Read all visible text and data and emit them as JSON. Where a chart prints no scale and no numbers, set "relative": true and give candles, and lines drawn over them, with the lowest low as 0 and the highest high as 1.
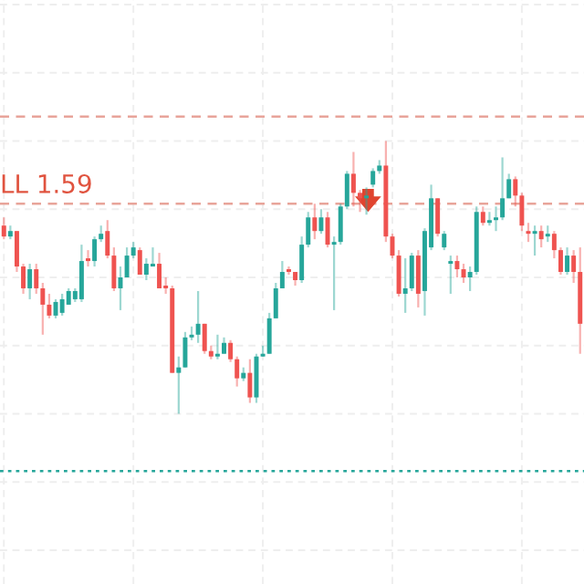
{
  "chart_data": {
    "type": "candlestick",
    "relative": true,
    "grid": true,
    "tick_labels": false,
    "categories": [
      null,
      null,
      null,
      null,
      null,
      null,
      null,
      null,
      null,
      null,
      null,
      null,
      null,
      null,
      null,
      null,
      null,
      null,
      null,
      null,
      null,
      null,
      null,
      null,
      null,
      null,
      null,
      null,
      null,
      null,
      null,
      null,
      null,
      null,
      null,
      null,
      null,
      null,
      null,
      null,
      null,
      null,
      null,
      null,
      null,
      null,
      null,
      null,
      null,
      null,
      null,
      null,
      null,
      null,
      null,
      null,
      null,
      null,
      null,
      null,
      null,
      null,
      null,
      null,
      null,
      null,
      null,
      null,
      null,
      null,
      null,
      null,
      null,
      null,
      null,
      null,
      null,
      null,
      null,
      null,
      null,
      null,
      null,
      null,
      null,
      null,
      null,
      null,
      null,
      null
    ],
    "ohlc": [
      [
        0.69,
        0.72,
        0.64,
        0.65
      ],
      [
        0.65,
        0.69,
        0.64,
        0.67
      ],
      [
        0.67,
        0.67,
        0.52,
        0.54
      ],
      [
        0.54,
        0.55,
        0.44,
        0.46
      ],
      [
        0.46,
        0.55,
        0.42,
        0.53
      ],
      [
        0.53,
        0.55,
        0.44,
        0.46
      ],
      [
        0.46,
        0.48,
        0.29,
        0.4
      ],
      [
        0.4,
        0.44,
        0.35,
        0.36
      ],
      [
        0.36,
        0.42,
        0.35,
        0.41
      ],
      [
        0.37,
        0.44,
        0.36,
        0.42
      ],
      [
        0.4,
        0.46,
        0.4,
        0.45
      ],
      [
        0.42,
        0.46,
        0.41,
        0.45
      ],
      [
        0.42,
        0.62,
        0.41,
        0.56
      ],
      [
        0.57,
        0.6,
        0.54,
        0.56
      ],
      [
        0.56,
        0.65,
        0.54,
        0.64
      ],
      [
        0.64,
        0.69,
        0.63,
        0.66
      ],
      [
        0.67,
        0.71,
        0.57,
        0.58
      ],
      [
        0.58,
        0.61,
        0.45,
        0.46
      ],
      [
        0.46,
        0.54,
        0.38,
        0.5
      ],
      [
        0.5,
        0.61,
        0.5,
        0.58
      ],
      [
        0.58,
        0.63,
        0.57,
        0.61
      ],
      [
        0.6,
        0.61,
        0.51,
        0.51
      ],
      [
        0.51,
        0.57,
        0.49,
        0.55
      ],
      [
        0.54,
        0.61,
        0.54,
        0.55
      ],
      [
        0.55,
        0.59,
        0.46,
        0.46
      ],
      [
        0.47,
        0.5,
        0.44,
        0.46
      ],
      [
        0.46,
        0.47,
        0.15,
        0.15
      ],
      [
        0.15,
        0.21,
        0,
        0.17
      ],
      [
        0.17,
        0.3,
        0.17,
        0.28
      ],
      [
        0.28,
        0.32,
        0.27,
        0.29
      ],
      [
        0.29,
        0.45,
        0.26,
        0.33
      ],
      [
        0.33,
        0.33,
        0.22,
        0.23
      ],
      [
        0.23,
        0.25,
        0.2,
        0.21
      ],
      [
        0.21,
        0.29,
        0.2,
        0.22
      ],
      [
        0.22,
        0.28,
        0.22,
        0.26
      ],
      [
        0.26,
        0.27,
        0.19,
        0.2
      ],
      [
        0.2,
        0.21,
        0.1,
        0.13
      ],
      [
        0.13,
        0.17,
        0.12,
        0.15
      ],
      [
        0.15,
        0.2,
        0.04,
        0.06
      ],
      [
        0.06,
        0.22,
        0.04,
        0.21
      ],
      [
        0.21,
        0.25,
        0.21,
        0.22
      ],
      [
        0.22,
        0.37,
        0.22,
        0.35
      ],
      [
        0.35,
        0.48,
        0.35,
        0.46
      ],
      [
        0.46,
        0.56,
        0.46,
        0.52
      ],
      [
        0.53,
        0.54,
        0.51,
        0.52
      ],
      [
        0.52,
        0.52,
        0.47,
        0.49
      ],
      [
        0.49,
        0.65,
        0.48,
        0.62
      ],
      [
        0.62,
        0.74,
        0.61,
        0.72
      ],
      [
        0.72,
        0.77,
        0.64,
        0.67
      ],
      [
        0.67,
        0.75,
        0.66,
        0.72
      ],
      [
        0.72,
        0.74,
        0.61,
        0.62
      ],
      [
        0.62,
        0.65,
        0.38,
        0.63
      ],
      [
        0.63,
        0.77,
        0.62,
        0.76
      ],
      [
        0.76,
        0.89,
        0.75,
        0.88
      ],
      [
        0.88,
        0.96,
        0.76,
        0.81
      ],
      [
        0.81,
        0.82,
        0.74,
        0.79
      ],
      [
        0.79,
        0.83,
        0.73,
        0.8
      ],
      [
        0.84,
        0.9,
        0.83,
        0.89
      ],
      [
        0.89,
        0.93,
        0.88,
        0.91
      ],
      [
        0.91,
        1.0,
        0.63,
        0.65
      ],
      [
        0.65,
        0.66,
        0.57,
        0.58
      ],
      [
        0.58,
        0.6,
        0.43,
        0.44
      ],
      [
        0.44,
        0.57,
        0.37,
        0.46
      ],
      [
        0.46,
        0.59,
        0.45,
        0.58
      ],
      [
        0.58,
        0.6,
        0.39,
        0.44
      ],
      [
        0.45,
        0.68,
        0.36,
        0.67
      ],
      [
        0.61,
        0.84,
        0.6,
        0.79
      ],
      [
        0.79,
        0.79,
        0.65,
        0.66
      ],
      [
        0.61,
        0.67,
        0.6,
        0.66
      ],
      [
        0.55,
        0.58,
        0.44,
        0.56
      ],
      [
        0.56,
        0.58,
        0.5,
        0.53
      ],
      [
        0.53,
        0.55,
        0.48,
        0.5
      ],
      [
        0.5,
        0.54,
        0.45,
        0.52
      ],
      [
        0.52,
        0.76,
        0.51,
        0.74
      ],
      [
        0.74,
        0.76,
        0.69,
        0.7
      ],
      [
        0.7,
        0.74,
        0.69,
        0.71
      ],
      [
        0.71,
        0.76,
        0.67,
        0.72
      ],
      [
        0.72,
        0.94,
        0.71,
        0.79
      ],
      [
        0.79,
        0.88,
        0.79,
        0.86
      ],
      [
        0.86,
        0.87,
        0.76,
        0.8
      ],
      [
        0.8,
        0.81,
        0.67,
        0.69
      ],
      [
        0.67,
        0.7,
        0.63,
        0.66
      ],
      [
        0.66,
        0.69,
        0.58,
        0.67
      ],
      [
        0.67,
        0.69,
        0.61,
        0.64
      ],
      [
        0.65,
        0.69,
        0.63,
        0.66
      ],
      [
        0.66,
        0.67,
        0.57,
        0.6
      ],
      [
        0.6,
        0.61,
        0.51,
        0.52
      ],
      [
        0.52,
        0.61,
        0.51,
        0.58
      ],
      [
        0.58,
        0.6,
        0.48,
        0.52
      ],
      [
        0.52,
        0.61,
        0.22,
        0.33
      ]
    ],
    "ref_lines": [
      {
        "axis": "y",
        "value": 1.09,
        "color": "#e8a49a",
        "line_style": "dashed"
      },
      {
        "axis": "y",
        "value": 0.77,
        "label": "LL 1.59",
        "color": "#e8a49a",
        "line_style": "dashed"
      },
      {
        "axis": "y",
        "value": -0.21,
        "color": "#26a69a",
        "line_style": "dotted"
      }
    ]
  }
}
